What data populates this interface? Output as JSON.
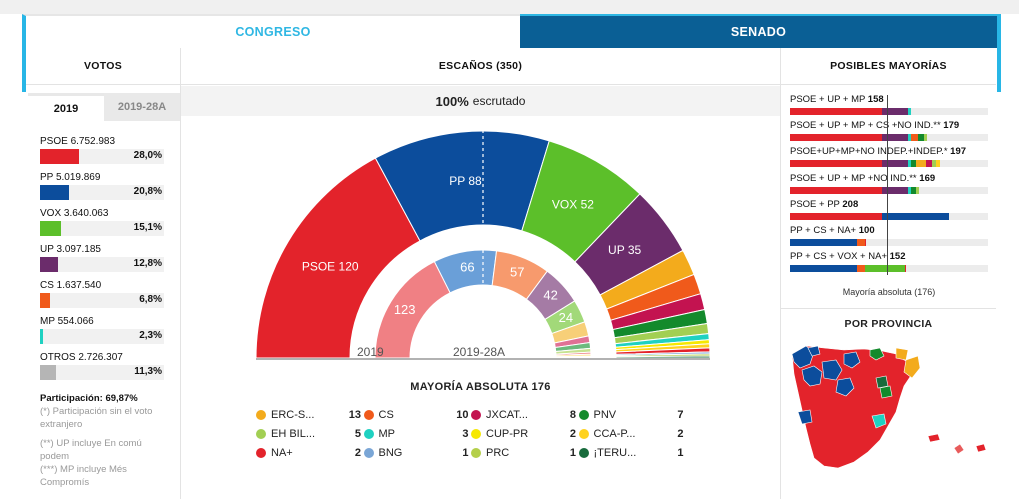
{
  "tabs": {
    "congreso": "CONGRESO",
    "senado": "SENADO"
  },
  "headers": {
    "votos": "VOTOS",
    "escanos": "ESCAÑOS (350)",
    "mayorias": "POSIBLES MAYORÍAS",
    "provincia": "POR PROVINCIA"
  },
  "subtabs": {
    "current": "2019",
    "previous": "2019-28A"
  },
  "votes": [
    {
      "label": "PSOE 6.752.983",
      "pct": "28,0%",
      "share": 0.28,
      "color": "#e3232b"
    },
    {
      "label": "PP 5.019.869",
      "pct": "20,8%",
      "share": 0.208,
      "color": "#0c4d9c"
    },
    {
      "label": "VOX 3.640.063",
      "pct": "15,1%",
      "share": 0.151,
      "color": "#5cbf2a"
    },
    {
      "label": "UP 3.097.185",
      "pct": "12,8%",
      "share": 0.128,
      "color": "#6b2c6b"
    },
    {
      "label": "CS 1.637.540",
      "pct": "6,8%",
      "share": 0.068,
      "color": "#f05a1b"
    },
    {
      "label": "MP 554.066",
      "pct": "2,3%",
      "share": 0.023,
      "color": "#1fd1c1"
    },
    {
      "label": "OTROS 2.726.307",
      "pct": "11,3%",
      "share": 0.113,
      "color": "#b5b5b5"
    }
  ],
  "participation": {
    "label": "Participación:",
    "value": "69,87%"
  },
  "notes": [
    "(*) Participación sin el voto extranjero",
    "(**) UP incluye En comú podem",
    "(***) MP incluye Més Compromís"
  ],
  "scrutiny": {
    "pct": "100%",
    "text": "escrutado"
  },
  "chart_data": {
    "type": "hemicycle",
    "total_seats": 350,
    "outer": {
      "label": "2019",
      "seats": [
        {
          "party": "PSOE",
          "seats": 120,
          "color": "#e3232b",
          "label": true
        },
        {
          "party": "PP",
          "seats": 88,
          "color": "#0c4d9c",
          "label": true
        },
        {
          "party": "VOX",
          "seats": 52,
          "color": "#5cbf2a",
          "label": true
        },
        {
          "party": "UP",
          "seats": 35,
          "color": "#6b2c6b",
          "label": true
        },
        {
          "party": "ERC-S",
          "seats": 13,
          "color": "#f3ab1c"
        },
        {
          "party": "CS",
          "seats": 10,
          "color": "#f05a1b"
        },
        {
          "party": "JXCAT",
          "seats": 8,
          "color": "#c31350"
        },
        {
          "party": "PNV",
          "seats": 7,
          "color": "#138a2c"
        },
        {
          "party": "EH BIL",
          "seats": 5,
          "color": "#a2cf53"
        },
        {
          "party": "MP",
          "seats": 3,
          "color": "#1fd1c1"
        },
        {
          "party": "CUP-PR",
          "seats": 2,
          "color": "#f6e800"
        },
        {
          "party": "CCA-P",
          "seats": 2,
          "color": "#ffd21f"
        },
        {
          "party": "NA+",
          "seats": 2,
          "color": "#e3232b"
        },
        {
          "party": "BNG",
          "seats": 1,
          "color": "#7aa6d6"
        },
        {
          "party": "PRC",
          "seats": 1,
          "color": "#b4cf4a"
        },
        {
          "party": "¡TERU",
          "seats": 1,
          "color": "#186b3c"
        }
      ]
    },
    "inner": {
      "label": "2019-28A",
      "seats": [
        {
          "party": "PSOE",
          "seats": 123,
          "color": "#f08084",
          "label": true
        },
        {
          "party": "PP",
          "seats": 66,
          "color": "#6a9fd8",
          "label": true
        },
        {
          "party": "CS",
          "seats": 57,
          "color": "#f79a6d",
          "label": true
        },
        {
          "party": "UP",
          "seats": 42,
          "color": "#a57ba5",
          "label": true
        },
        {
          "party": "VOX",
          "seats": 24,
          "color": "#a2d979",
          "label": true
        },
        {
          "party": "ERC",
          "seats": 15,
          "color": "#f7cf78"
        },
        {
          "party": "JXCAT",
          "seats": 7,
          "color": "#e07195"
        },
        {
          "party": "PNV",
          "seats": 6,
          "color": "#6cba7d"
        },
        {
          "party": "EH BIL",
          "seats": 4,
          "color": "#c7e290"
        },
        {
          "party": "NA+",
          "seats": 2,
          "color": "#f08084"
        },
        {
          "party": "CCA",
          "seats": 2,
          "color": "#ffe07a"
        },
        {
          "party": "PRC",
          "seats": 1,
          "color": "#d2e490"
        },
        {
          "party": "COMPR",
          "seats": 1,
          "color": "#7ae1d6"
        }
      ]
    }
  },
  "majority": {
    "label": "MAYORÍA ABSOLUTA",
    "value": "176"
  },
  "legend": [
    [
      {
        "name": "ERC-S...",
        "seats": "13",
        "color": "#f3ab1c"
      },
      {
        "name": "CS",
        "seats": "10",
        "color": "#f05a1b"
      },
      {
        "name": "JXCAT...",
        "seats": "8",
        "color": "#c31350"
      },
      {
        "name": "PNV",
        "seats": "7",
        "color": "#138a2c"
      }
    ],
    [
      {
        "name": "EH BIL...",
        "seats": "5",
        "color": "#a2cf53"
      },
      {
        "name": "MP",
        "seats": "3",
        "color": "#1fd1c1"
      },
      {
        "name": "CUP-PR",
        "seats": "2",
        "color": "#f6e800"
      },
      {
        "name": "CCA-P...",
        "seats": "2",
        "color": "#ffd21f"
      }
    ],
    [
      {
        "name": "NA+",
        "seats": "2",
        "color": "#e3232b"
      },
      {
        "name": "BNG",
        "seats": "1",
        "color": "#7aa6d6"
      },
      {
        "name": "PRC",
        "seats": "1",
        "color": "#b4cf4a"
      },
      {
        "name": "¡TERU...",
        "seats": "1",
        "color": "#186b3c"
      }
    ]
  ],
  "coalitions": [
    {
      "label": "PSOE + UP + MP",
      "total": "158",
      "parts": [
        {
          "seats": 120,
          "color": "#e3232b"
        },
        {
          "seats": 35,
          "color": "#6b2c6b"
        },
        {
          "seats": 3,
          "color": "#1fd1c1"
        }
      ]
    },
    {
      "label": "PSOE + UP + MP + CS +NO IND.**",
      "total": "179",
      "parts": [
        {
          "seats": 120,
          "color": "#e3232b"
        },
        {
          "seats": 35,
          "color": "#6b2c6b"
        },
        {
          "seats": 3,
          "color": "#1fd1c1"
        },
        {
          "seats": 10,
          "color": "#f05a1b"
        },
        {
          "seats": 7,
          "color": "#138a2c"
        },
        {
          "seats": 4,
          "color": "#a2cf53"
        }
      ]
    },
    {
      "label": "PSOE+UP+MP+NO INDEP.+INDEP.*",
      "total": "197",
      "parts": [
        {
          "seats": 120,
          "color": "#e3232b"
        },
        {
          "seats": 35,
          "color": "#6b2c6b"
        },
        {
          "seats": 3,
          "color": "#1fd1c1"
        },
        {
          "seats": 7,
          "color": "#138a2c"
        },
        {
          "seats": 13,
          "color": "#f3ab1c"
        },
        {
          "seats": 8,
          "color": "#c31350"
        },
        {
          "seats": 5,
          "color": "#a2cf53"
        },
        {
          "seats": 6,
          "color": "#ffd21f"
        }
      ]
    },
    {
      "label": "PSOE + UP + MP +NO IND.**",
      "total": "169",
      "parts": [
        {
          "seats": 120,
          "color": "#e3232b"
        },
        {
          "seats": 35,
          "color": "#6b2c6b"
        },
        {
          "seats": 3,
          "color": "#1fd1c1"
        },
        {
          "seats": 7,
          "color": "#138a2c"
        },
        {
          "seats": 4,
          "color": "#a2cf53"
        }
      ]
    },
    {
      "label": "PSOE + PP",
      "total": "208",
      "parts": [
        {
          "seats": 120,
          "color": "#e3232b"
        },
        {
          "seats": 88,
          "color": "#0c4d9c"
        }
      ]
    },
    {
      "label": "PP + CS + NA+",
      "total": "100",
      "parts": [
        {
          "seats": 88,
          "color": "#0c4d9c"
        },
        {
          "seats": 10,
          "color": "#f05a1b"
        },
        {
          "seats": 2,
          "color": "#e3232b"
        }
      ]
    },
    {
      "label": "PP + CS + VOX + NA+",
      "total": "152",
      "parts": [
        {
          "seats": 88,
          "color": "#0c4d9c"
        },
        {
          "seats": 10,
          "color": "#f05a1b"
        },
        {
          "seats": 52,
          "color": "#5cbf2a"
        },
        {
          "seats": 2,
          "color": "#e3232b"
        }
      ]
    }
  ],
  "majority_note": "Mayoría absoluta (176)",
  "map_colors": {
    "psoe": "#e3232b",
    "pp": "#0c4d9c",
    "pnv": "#138a2c",
    "erc": "#f3ab1c",
    "teruel": "#186b3c",
    "mp": "#1fd1c1",
    "na": "#e85b5b"
  }
}
